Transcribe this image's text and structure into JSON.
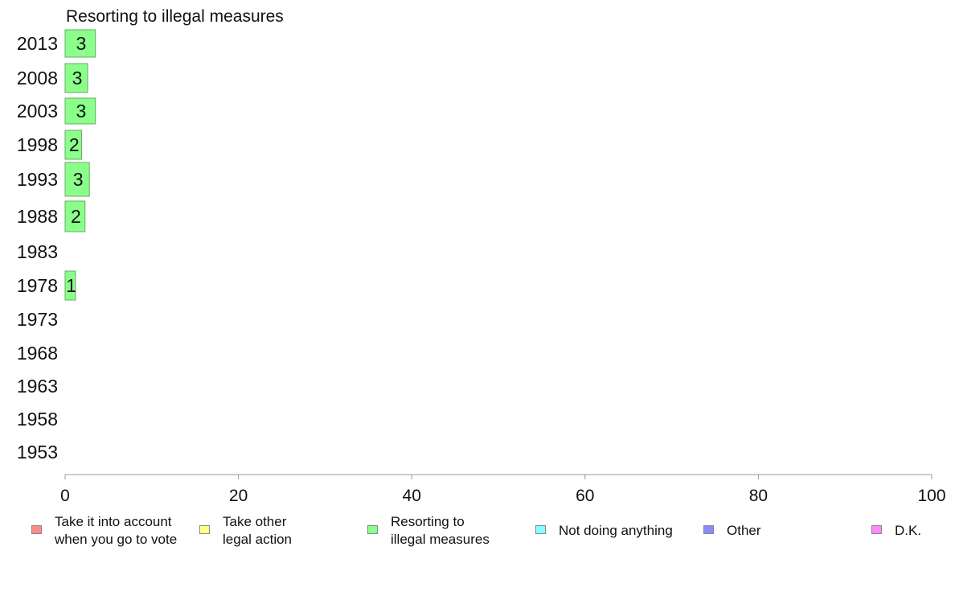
{
  "chart_data": {
    "type": "bar",
    "title": "Resorting to illegal measures",
    "categories": [
      "2013",
      "2008",
      "2003",
      "1998",
      "1993",
      "1988",
      "1983",
      "1978",
      "1973",
      "1968",
      "1963",
      "1958",
      "1953"
    ],
    "series": [
      {
        "name": "Resorting to illegal measures",
        "values": [
          3.5,
          2.6,
          3.5,
          1.9,
          2.8,
          2.3,
          null,
          1.2,
          null,
          null,
          null,
          null,
          null
        ],
        "labels": [
          "3",
          "3",
          "3",
          "2",
          "3",
          "2",
          "",
          "1",
          "",
          "",
          "",
          "",
          ""
        ]
      }
    ],
    "xlim": [
      0,
      100
    ],
    "xticks": [
      "0",
      "20",
      "40",
      "60",
      "80",
      "100"
    ],
    "grid": false,
    "legend_position": "bottom"
  },
  "legend": [
    {
      "label": "Take it into account\nwhen you go to vote",
      "color": "#ff8a8a"
    },
    {
      "label": "Take other\nlegal action",
      "color": "#ffff8a"
    },
    {
      "label": "Resorting to\nillegal measures",
      "color": "#8aff8a"
    },
    {
      "label": "Not doing anything",
      "color": "#8affff"
    },
    {
      "label": "Other",
      "color": "#8a8aff"
    },
    {
      "label": "D.K.",
      "color": "#ff8aff"
    }
  ]
}
